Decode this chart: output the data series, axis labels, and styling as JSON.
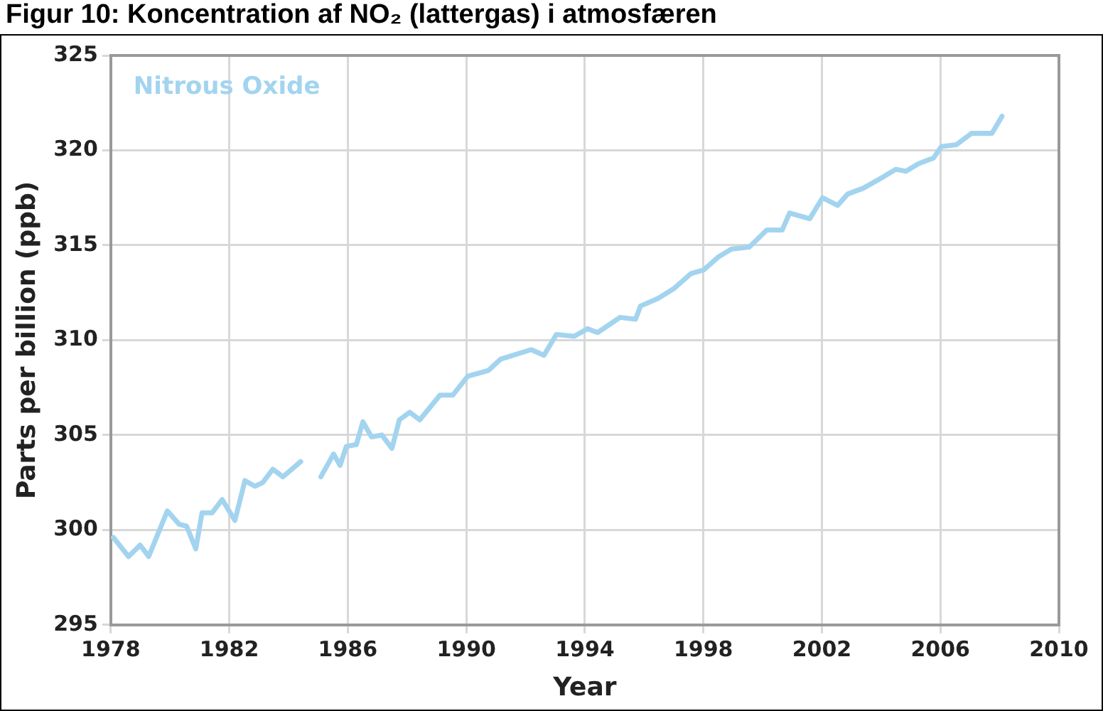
{
  "chart_data": {
    "type": "line",
    "title": "Figur 10: Koncentration af NO₂ (lattergas) i atmosfæren",
    "xlabel": "Year",
    "ylabel": "Parts per billion (ppb)",
    "x": [
      1978.09,
      1978.6,
      1978.99,
      1979.28,
      1979.91,
      1980.31,
      1980.56,
      1980.87,
      1981.08,
      1981.42,
      1981.76,
      1982.19,
      1982.53,
      1982.87,
      1983.13,
      1983.47,
      1983.81,
      1984.41,
      1984.75,
      1985.09,
      1985.52,
      1985.74,
      1985.95,
      1986.29,
      1986.51,
      1986.8,
      1987.15,
      1987.49,
      1987.74,
      1988.09,
      1988.43,
      1989.11,
      1989.54,
      1990.05,
      1990.74,
      1991.16,
      1992.19,
      1992.62,
      1993.04,
      1993.64,
      1994.09,
      1994.43,
      1995.19,
      1995.71,
      1995.88,
      1996.47,
      1996.99,
      1997.58,
      1998.01,
      1998.52,
      1998.95,
      1999.55,
      2000.14,
      2000.66,
      2000.91,
      2001.59,
      2002.02,
      2002.53,
      2002.87,
      2003.39,
      2003.73,
      2004.07,
      2004.49,
      2004.84,
      2005.26,
      2005.77,
      2006.03,
      2006.54,
      2007.05,
      2007.74,
      2008.08
    ],
    "series": [
      {
        "name": "Nitrous Oxide",
        "color": "#a3d4ef",
        "values": [
          299.6,
          298.6,
          299.2,
          298.6,
          301.0,
          300.3,
          300.2,
          299.0,
          300.9,
          300.9,
          301.6,
          300.5,
          302.6,
          302.3,
          302.5,
          303.2,
          302.8,
          303.6,
          null,
          302.8,
          304.0,
          303.4,
          304.4,
          304.5,
          305.7,
          304.9,
          305.0,
          304.3,
          305.8,
          306.2,
          305.8,
          307.1,
          307.1,
          308.1,
          308.4,
          309.0,
          309.5,
          309.2,
          310.3,
          310.2,
          310.6,
          310.4,
          311.2,
          311.1,
          311.8,
          312.2,
          312.7,
          313.5,
          313.7,
          314.4,
          314.8,
          314.9,
          315.8,
          315.8,
          316.7,
          316.4,
          317.5,
          317.1,
          317.7,
          318.0,
          318.3,
          318.6,
          319.0,
          318.9,
          319.3,
          319.6,
          320.2,
          320.3,
          320.9,
          320.9,
          321.8
        ]
      }
    ],
    "xlim": [
      1978,
      2010
    ],
    "xticks": [
      1978,
      1982,
      1986,
      1990,
      1994,
      1998,
      2002,
      2006,
      2010
    ],
    "ylim": [
      295,
      325
    ],
    "yticks": [
      295,
      300,
      305,
      310,
      315,
      320,
      325
    ],
    "grid": true,
    "legend": false,
    "marker": "none",
    "line_style": "solid"
  }
}
